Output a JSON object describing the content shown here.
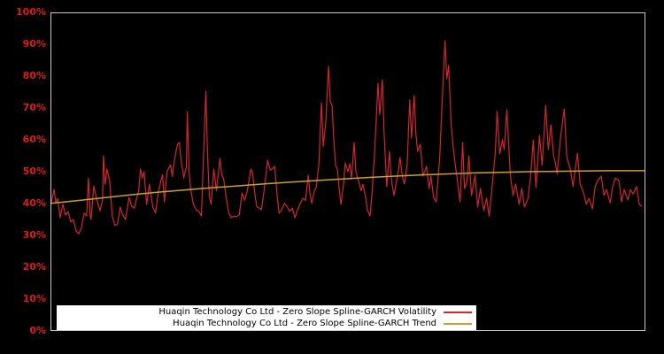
{
  "page": {
    "background_color": "#000000"
  },
  "chart_data": {
    "type": "line",
    "title": "",
    "xlabel": "",
    "ylabel": "",
    "ylim": [
      0,
      100
    ],
    "y_tick_labels": [
      "100%",
      "90%",
      "80%",
      "70%",
      "60%",
      "50%",
      "40%",
      "30%",
      "20%",
      "10%",
      "0%"
    ],
    "x_tick_labels": [],
    "grid": false,
    "background_color": "#000000",
    "plot_border_color": "#c8c8c8",
    "axis_label_color": "#e01818",
    "legend_position": "lower center",
    "legend_background": "#ffffff",
    "series": [
      {
        "name": "Huaqin Technology Co Ltd - Zero Slope Spline-GARCH Volatility",
        "color": "#d22630",
        "width": 1.2,
        "points": [
          [
            0,
            40.2
          ],
          [
            3,
            44.4
          ],
          [
            5,
            40.2
          ],
          [
            7,
            41.6
          ],
          [
            10,
            35.5
          ],
          [
            13,
            39.7
          ],
          [
            16,
            36.3
          ],
          [
            19,
            37.4
          ],
          [
            22,
            34.1
          ],
          [
            25,
            34.9
          ],
          [
            28,
            31.3
          ],
          [
            31,
            30.4
          ],
          [
            34,
            32.1
          ],
          [
            37,
            36.9
          ],
          [
            40,
            36
          ],
          [
            42,
            48
          ],
          [
            44,
            36
          ],
          [
            45,
            34.9
          ],
          [
            48,
            45.5
          ],
          [
            51,
            41.9
          ],
          [
            55,
            37.7
          ],
          [
            58,
            41
          ],
          [
            59,
            55
          ],
          [
            61,
            46
          ],
          [
            63,
            50.8
          ],
          [
            66,
            47.2
          ],
          [
            69,
            36
          ],
          [
            72,
            33
          ],
          [
            75,
            33.5
          ],
          [
            78,
            38.8
          ],
          [
            81,
            36.3
          ],
          [
            84,
            34.9
          ],
          [
            88,
            41.9
          ],
          [
            91,
            39.1
          ],
          [
            94,
            38.5
          ],
          [
            96,
            41
          ],
          [
            99,
            44
          ],
          [
            101,
            50.8
          ],
          [
            103,
            48
          ],
          [
            105,
            50
          ],
          [
            108,
            39.7
          ],
          [
            111,
            46.1
          ],
          [
            115,
            38.8
          ],
          [
            118,
            36.9
          ],
          [
            121,
            43.3
          ],
          [
            124,
            47
          ],
          [
            126,
            49
          ],
          [
            128,
            40.5
          ],
          [
            131,
            50
          ],
          [
            135,
            52.2
          ],
          [
            137,
            48.5
          ],
          [
            139,
            53
          ],
          [
            141,
            56
          ],
          [
            143,
            58.7
          ],
          [
            145,
            59.2
          ],
          [
            147,
            53.6
          ],
          [
            150,
            48
          ],
          [
            153,
            51.7
          ],
          [
            154,
            69
          ],
          [
            156,
            50
          ],
          [
            158,
            44
          ],
          [
            161,
            39.7
          ],
          [
            164,
            38
          ],
          [
            167,
            37.5
          ],
          [
            170,
            36
          ],
          [
            173,
            60
          ],
          [
            175,
            75.4
          ],
          [
            177,
            55
          ],
          [
            179,
            42
          ],
          [
            181,
            39.7
          ],
          [
            184,
            50.8
          ],
          [
            187,
            44
          ],
          [
            191,
            54.2
          ],
          [
            193,
            49
          ],
          [
            195,
            48
          ],
          [
            198,
            42
          ],
          [
            201,
            36.9
          ],
          [
            204,
            35.5
          ],
          [
            207,
            36
          ],
          [
            210,
            35.8
          ],
          [
            213,
            36.5
          ],
          [
            216,
            43.3
          ],
          [
            219,
            41
          ],
          [
            222,
            44
          ],
          [
            226,
            50.8
          ],
          [
            228,
            49.5
          ],
          [
            231,
            42
          ],
          [
            233,
            38.8
          ],
          [
            236,
            38.5
          ],
          [
            238,
            38
          ],
          [
            241,
            44
          ],
          [
            245,
            53.6
          ],
          [
            248,
            50.5
          ],
          [
            251,
            51
          ],
          [
            253,
            51.7
          ],
          [
            256,
            42
          ],
          [
            258,
            36.9
          ],
          [
            261,
            38
          ],
          [
            264,
            40
          ],
          [
            267,
            39
          ],
          [
            270,
            37.5
          ],
          [
            273,
            38.5
          ],
          [
            276,
            35.5
          ],
          [
            279,
            38
          ],
          [
            282,
            40
          ],
          [
            285,
            41.6
          ],
          [
            288,
            41
          ],
          [
            291,
            48.9
          ],
          [
            293,
            43
          ],
          [
            295,
            40
          ],
          [
            298,
            44
          ],
          [
            300,
            45
          ],
          [
            303,
            52
          ],
          [
            306,
            71.8
          ],
          [
            308,
            58
          ],
          [
            311,
            66
          ],
          [
            314,
            83.2
          ],
          [
            316,
            72
          ],
          [
            318,
            71
          ],
          [
            320,
            60
          ],
          [
            322,
            52
          ],
          [
            324,
            50.8
          ],
          [
            326,
            45
          ],
          [
            328,
            39.7
          ],
          [
            331,
            46
          ],
          [
            333,
            52.8
          ],
          [
            336,
            50
          ],
          [
            338,
            52.5
          ],
          [
            340,
            48
          ],
          [
            343,
            59.2
          ],
          [
            345,
            50
          ],
          [
            348,
            47
          ],
          [
            351,
            44
          ],
          [
            353,
            46
          ],
          [
            356,
            42
          ],
          [
            358,
            38
          ],
          [
            361,
            36
          ],
          [
            363,
            42
          ],
          [
            366,
            55
          ],
          [
            368,
            66
          ],
          [
            370,
            77.9
          ],
          [
            372,
            68
          ],
          [
            375,
            79
          ],
          [
            377,
            62
          ],
          [
            380,
            45.3
          ],
          [
            383,
            56.4
          ],
          [
            385,
            48
          ],
          [
            388,
            42.5
          ],
          [
            391,
            47
          ],
          [
            393,
            50
          ],
          [
            395,
            54.5
          ],
          [
            398,
            48
          ],
          [
            400,
            46.1
          ],
          [
            403,
            52
          ],
          [
            406,
            72.6
          ],
          [
            408,
            60.6
          ],
          [
            411,
            74
          ],
          [
            413,
            62
          ],
          [
            415,
            56.4
          ],
          [
            418,
            58.7
          ],
          [
            421,
            48.6
          ],
          [
            425,
            51.7
          ],
          [
            428,
            44.7
          ],
          [
            430,
            48.6
          ],
          [
            433,
            41.9
          ],
          [
            436,
            40.5
          ],
          [
            440,
            54.5
          ],
          [
            443,
            74
          ],
          [
            446,
            91.3
          ],
          [
            448,
            79.3
          ],
          [
            450,
            83.5
          ],
          [
            453,
            64.8
          ],
          [
            456,
            55.6
          ],
          [
            460,
            47.2
          ],
          [
            463,
            40.5
          ],
          [
            466,
            59.2
          ],
          [
            468,
            44.7
          ],
          [
            471,
            47
          ],
          [
            473,
            55
          ],
          [
            476,
            42.5
          ],
          [
            480,
            48.9
          ],
          [
            483,
            38.8
          ],
          [
            486,
            44.7
          ],
          [
            490,
            37.7
          ],
          [
            493,
            41.6
          ],
          [
            496,
            36
          ],
          [
            500,
            47.2
          ],
          [
            503,
            56.4
          ],
          [
            505,
            69
          ],
          [
            508,
            55.6
          ],
          [
            511,
            60.1
          ],
          [
            513,
            57
          ],
          [
            516,
            69.6
          ],
          [
            520,
            48.9
          ],
          [
            523,
            42.5
          ],
          [
            526,
            46.1
          ],
          [
            530,
            39.7
          ],
          [
            533,
            44.7
          ],
          [
            536,
            38.8
          ],
          [
            540,
            41.6
          ],
          [
            543,
            48.9
          ],
          [
            546,
            60
          ],
          [
            549,
            45
          ],
          [
            553,
            61.5
          ],
          [
            556,
            52
          ],
          [
            560,
            70.9
          ],
          [
            563,
            57
          ],
          [
            566,
            64.8
          ],
          [
            569,
            55
          ],
          [
            571,
            52.8
          ],
          [
            573,
            49.4
          ],
          [
            577,
            61.2
          ],
          [
            581,
            69.8
          ],
          [
            584,
            54.5
          ],
          [
            588,
            50.8
          ],
          [
            591,
            45.3
          ],
          [
            596,
            55.9
          ],
          [
            599,
            46.1
          ],
          [
            603,
            43.3
          ],
          [
            606,
            39.7
          ],
          [
            609,
            41.6
          ],
          [
            613,
            38.3
          ],
          [
            616,
            45.3
          ],
          [
            619,
            47.2
          ],
          [
            623,
            48.6
          ],
          [
            626,
            42.5
          ],
          [
            629,
            44.4
          ],
          [
            633,
            40.2
          ],
          [
            636,
            45.3
          ],
          [
            639,
            48
          ],
          [
            643,
            47.2
          ],
          [
            646,
            40.5
          ],
          [
            649,
            44.4
          ],
          [
            653,
            41.1
          ],
          [
            656,
            44.4
          ],
          [
            659,
            43
          ],
          [
            663,
            45.3
          ],
          [
            666,
            39.7
          ],
          [
            669,
            39.1
          ]
        ]
      },
      {
        "name": "Huaqin Technology Co Ltd - Zero Slope Spline-GARCH Trend",
        "color": "#c9a227",
        "width": 1.5,
        "points": [
          [
            0,
            40
          ],
          [
            30,
            40.9
          ],
          [
            60,
            41.8
          ],
          [
            90,
            42.7
          ],
          [
            120,
            43.5
          ],
          [
            150,
            44.2
          ],
          [
            180,
            44.9
          ],
          [
            210,
            45.5
          ],
          [
            240,
            46.1
          ],
          [
            270,
            46.7
          ],
          [
            300,
            47.2
          ],
          [
            330,
            47.7
          ],
          [
            360,
            48.2
          ],
          [
            390,
            48.6
          ],
          [
            420,
            49
          ],
          [
            450,
            49.3
          ],
          [
            480,
            49.6
          ],
          [
            510,
            49.8
          ],
          [
            540,
            50
          ],
          [
            570,
            50.1
          ],
          [
            600,
            50.2
          ],
          [
            630,
            50.3
          ],
          [
            660,
            50.3
          ],
          [
            672,
            50.3
          ]
        ]
      }
    ]
  }
}
